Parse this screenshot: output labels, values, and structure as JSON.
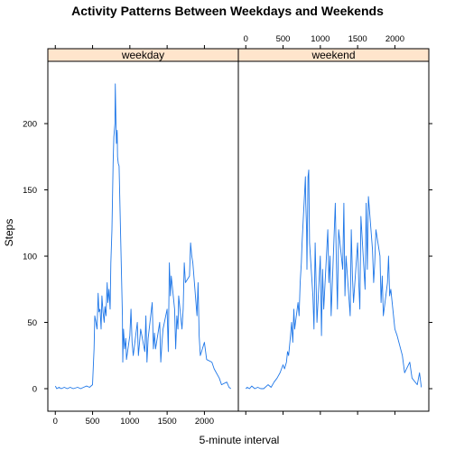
{
  "chart_data": {
    "type": "line",
    "title": "Activity Patterns Between Weekdays and Weekends",
    "xlabel": "5-minute interval",
    "ylabel": "Steps",
    "xlim": [
      -100,
      2455
    ],
    "ylim": [
      -17,
      247
    ],
    "x_ticks": [
      0,
      500,
      1000,
      1500,
      2000
    ],
    "y_ticks": [
      0,
      50,
      100,
      150,
      200
    ],
    "grid": false,
    "legend": "none",
    "colors": {
      "line": "#1f77e8",
      "strip_bg": "#ffe5cc",
      "frame": "#000000"
    },
    "panels": [
      {
        "name": "weekday",
        "series": [
          {
            "x": [
              0,
              20,
              50,
              80,
              120,
              160,
              200,
              240,
              300,
              340,
              380,
              420,
              460,
              500,
              520,
              530,
              545,
              560,
              575,
              585,
              600,
              615,
              625,
              640,
              655,
              665,
              680,
              695,
              705,
              720,
              735,
              745,
              760,
              775,
              785,
              800,
              805,
              815,
              820,
              830,
              835,
              845,
              855,
              900,
              905,
              915,
              930,
              945,
              955,
              1000,
              1015,
              1030,
              1045,
              1100,
              1115,
              1130,
              1145,
              1200,
              1215,
              1230,
              1245,
              1300,
              1315,
              1330,
              1345,
              1400,
              1415,
              1430,
              1445,
              1500,
              1515,
              1530,
              1545,
              1555,
              1600,
              1615,
              1630,
              1645,
              1655,
              1700,
              1715,
              1730,
              1745,
              1800,
              1815,
              1830,
              1845,
              1900,
              1915,
              1930,
              1945,
              2000,
              2030,
              2100,
              2130,
              2200,
              2230,
              2300,
              2330,
              2355
            ],
            "y": [
              2,
              0,
              1,
              0,
              1,
              0,
              1,
              0,
              1,
              0,
              1,
              2,
              1,
              3,
              30,
              55,
              50,
              45,
              72,
              58,
              60,
              45,
              70,
              58,
              50,
              62,
              55,
              80,
              65,
              75,
              60,
              95,
              120,
              170,
              190,
              200,
              230,
              195,
              185,
              195,
              175,
              170,
              168,
              55,
              20,
              45,
              30,
              38,
              22,
              40,
              60,
              35,
              25,
              50,
              25,
              35,
              45,
              28,
              55,
              20,
              38,
              65,
              30,
              42,
              30,
              50,
              20,
              35,
              45,
              60,
              28,
              95,
              70,
              85,
              60,
              30,
              55,
              45,
              70,
              45,
              60,
              95,
              80,
              85,
              110,
              100,
              95,
              55,
              80,
              40,
              25,
              35,
              22,
              20,
              15,
              8,
              3,
              5,
              1,
              0
            ]
          }
        ]
      },
      {
        "name": "weekend",
        "series": [
          {
            "x": [
              0,
              20,
              50,
              80,
              120,
              160,
              200,
              240,
              300,
              340,
              380,
              420,
              460,
              500,
              520,
              545,
              560,
              575,
              600,
              615,
              630,
              645,
              655,
              700,
              715,
              730,
              745,
              755,
              800,
              805,
              815,
              820,
              835,
              845,
              855,
              900,
              915,
              930,
              945,
              955,
              1000,
              1015,
              1030,
              1045,
              1100,
              1115,
              1130,
              1145,
              1200,
              1215,
              1230,
              1245,
              1300,
              1315,
              1330,
              1345,
              1400,
              1415,
              1430,
              1445,
              1500,
              1515,
              1530,
              1545,
              1600,
              1615,
              1630,
              1645,
              1700,
              1715,
              1730,
              1745,
              1800,
              1815,
              1830,
              1845,
              1900,
              1915,
              1930,
              1945,
              2000,
              2030,
              2100,
              2130,
              2200,
              2230,
              2300,
              2330,
              2355
            ],
            "y": [
              0,
              1,
              0,
              2,
              0,
              1,
              0,
              0,
              3,
              1,
              5,
              8,
              12,
              18,
              15,
              20,
              28,
              25,
              40,
              50,
              35,
              60,
              45,
              65,
              55,
              80,
              95,
              110,
              160,
              140,
              120,
              90,
              160,
              165,
              110,
              70,
              45,
              110,
              75,
              50,
              100,
              40,
              90,
              60,
              120,
              80,
              100,
              55,
              140,
              95,
              60,
              120,
              90,
              140,
              70,
              100,
              55,
              120,
              85,
              65,
              110,
              80,
              60,
              130,
              75,
              140,
              90,
              145,
              105,
              80,
              95,
              120,
              100,
              65,
              85,
              55,
              80,
              100,
              70,
              75,
              45,
              40,
              25,
              12,
              20,
              8,
              3,
              12,
              1
            ]
          }
        ]
      }
    ]
  }
}
